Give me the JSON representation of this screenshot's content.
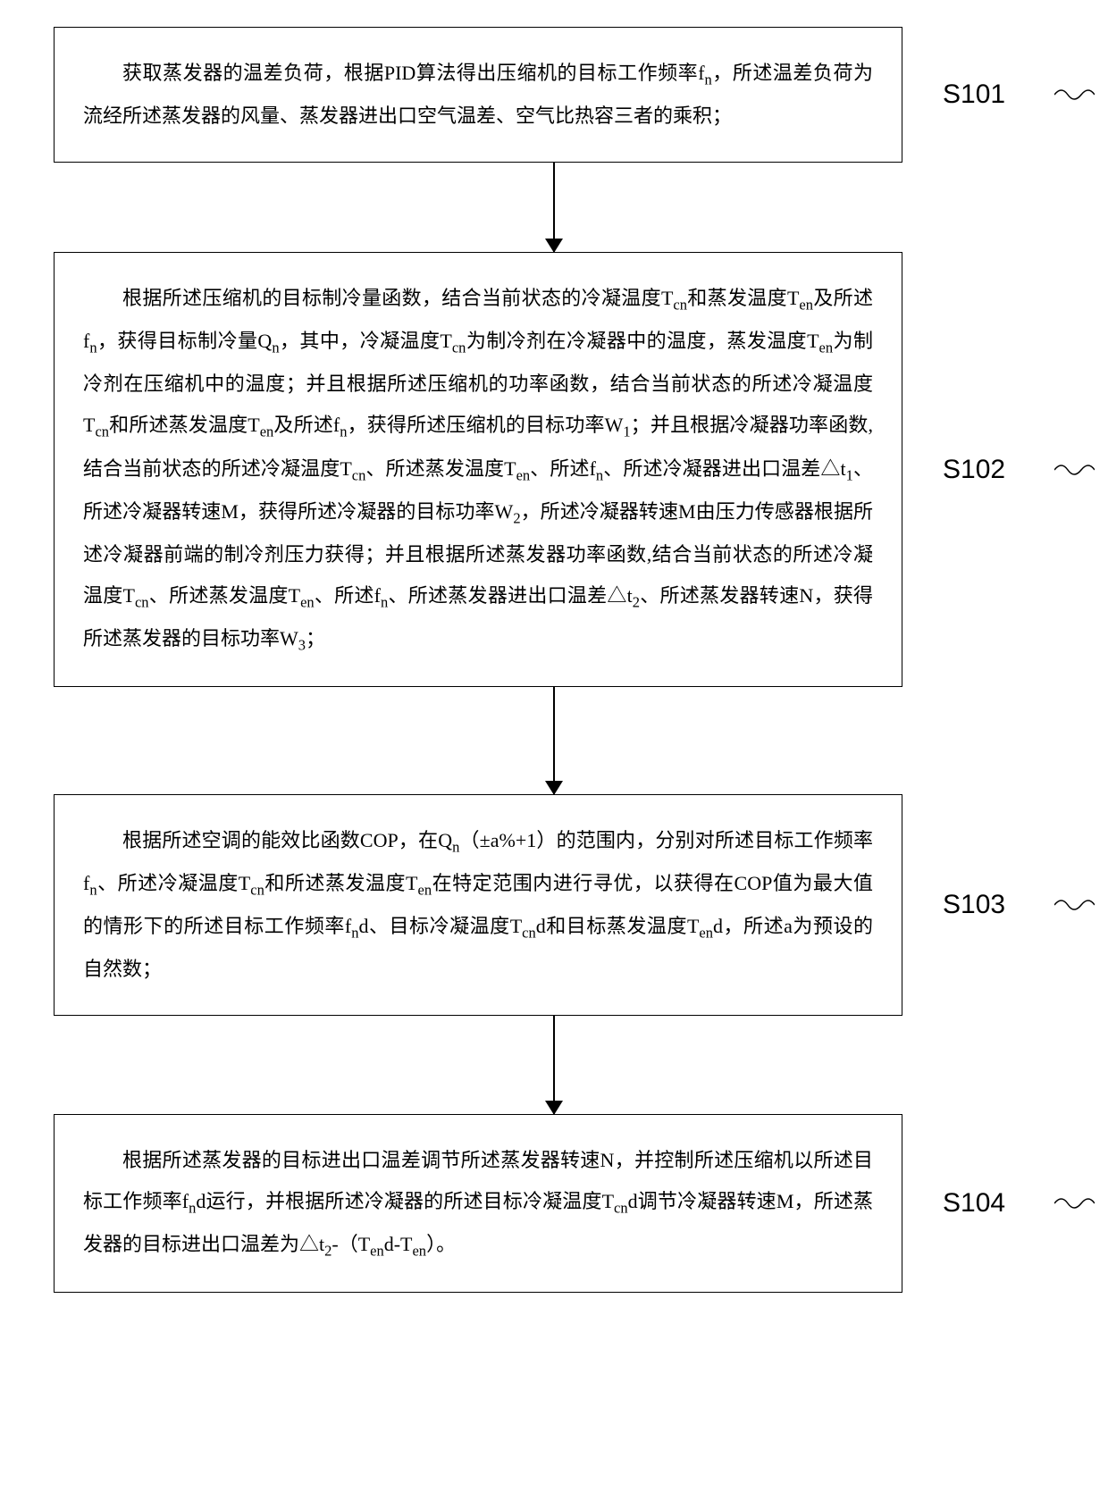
{
  "flowchart": {
    "steps": [
      {
        "label": "S101",
        "text": "获取蒸发器的温差负荷，根据PID算法得出压缩机的目标工作频率f<sub>n</sub>，所述温差负荷为流经所述蒸发器的风量、蒸发器进出口空气温差、空气比热容三者的乘积；",
        "connector_height": 100
      },
      {
        "label": "S102",
        "text": "根据所述压缩机的目标制冷量函数，结合当前状态的冷凝温度T<sub>cn</sub>和蒸发温度T<sub>en</sub>及所述f<sub>n</sub>，获得目标制冷量Q<sub>n</sub>，其中，冷凝温度T<sub>cn</sub>为制冷剂在冷凝器中的温度，蒸发温度T<sub>en</sub>为制冷剂在压缩机中的温度；并且根据所述压缩机的功率函数，结合当前状态的所述冷凝温度T<sub>cn</sub>和所述蒸发温度T<sub>en</sub>及所述f<sub>n</sub>，获得所述压缩机的目标功率W<sub>1</sub>；并且根据冷凝器功率函数,结合当前状态的所述冷凝温度T<sub>cn</sub>、所述蒸发温度T<sub>en</sub>、所述f<sub>n</sub>、所述冷凝器进出口温差△t<sub>1</sub>、所述冷凝器转速M，获得所述冷凝器的目标功率W<sub>2</sub>，所述冷凝器转速M由压力传感器根据所述冷凝器前端的制冷剂压力获得；并且根据所述蒸发器功率函数,结合当前状态的所述冷凝温度T<sub>cn</sub>、所述蒸发温度T<sub>en</sub>、所述f<sub>n</sub>、所述蒸发器进出口温差△t<sub>2</sub>、所述蒸发器转速N，获得所述蒸发器的目标功率W<sub>3</sub>；",
        "connector_height": 120
      },
      {
        "label": "S103",
        "text": "根据所述空调的能效比函数COP，在Q<sub>n</sub>（±a%+1）的范围内，分别对所述目标工作频率f<sub>n</sub>、所述冷凝温度T<sub>cn</sub>和所述蒸发温度T<sub>en</sub>在特定范围内进行寻优，以获得在COP值为最大值的情形下的所述目标工作频率f<sub>n</sub>d、目标冷凝温度T<sub>cn</sub>d和目标蒸发温度T<sub>en</sub>d，所述a为预设的自然数；",
        "connector_height": 110
      },
      {
        "label": "S104",
        "text": "根据所述蒸发器的目标进出口温差调节所述蒸发器转速N，并控制所述压缩机以所述目标工作频率f<sub>n</sub>d运行，并根据所述冷凝器的所述目标冷凝温度T<sub>cn</sub>d调节冷凝器转速M，所述蒸发器的目标进出口温差为△t<sub>2</sub>-（T<sub>en</sub>d-T<sub>en</sub>）。",
        "connector_height": 0
      }
    ],
    "styling": {
      "box_border_color": "#000000",
      "box_border_width": 1.5,
      "box_bg": "#ffffff",
      "text_color": "#000000",
      "font_size_box": 22,
      "font_size_label": 30,
      "line_height": 2.1,
      "arrow_head_width": 20,
      "arrow_head_height": 16,
      "connector_color": "#000000"
    }
  }
}
